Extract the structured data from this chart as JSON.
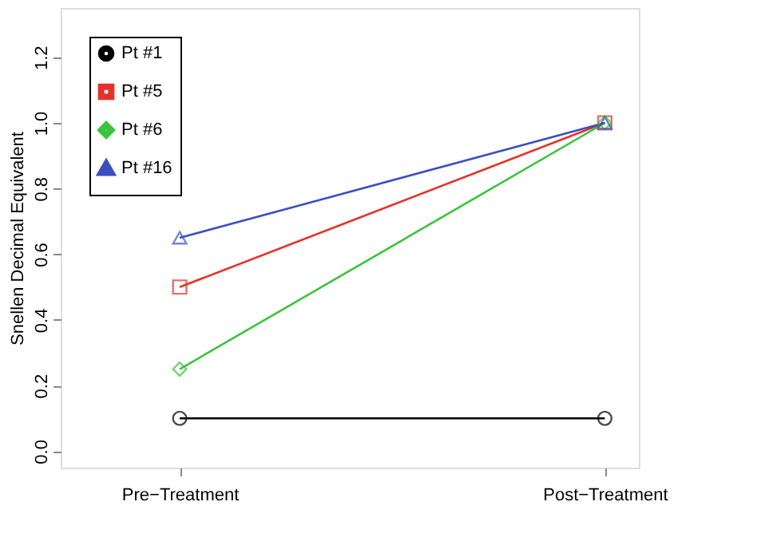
{
  "chart_data": {
    "type": "line",
    "ylabel": "Snellen Decimal Equivalent",
    "categories": [
      "Pre−Treatment",
      "Post−Treatment"
    ],
    "series": [
      {
        "name": "Pt #1",
        "color": "#000000",
        "values": [
          0.1,
          0.1
        ],
        "marker": "circle"
      },
      {
        "name": "Pt #5",
        "color": "#e8302a",
        "values": [
          0.5,
          1.0
        ],
        "marker": "square"
      },
      {
        "name": "Pt #6",
        "color": "#3cc23c",
        "values": [
          0.25,
          1.0
        ],
        "marker": "diamond"
      },
      {
        "name": "Pt #16",
        "color": "#3a4fc0",
        "values": [
          0.65,
          1.0
        ],
        "marker": "triangle"
      }
    ],
    "ylim": [
      -0.05,
      1.35
    ],
    "yticks": [
      {
        "value": 0,
        "label": "0.0"
      },
      0.2,
      0.4,
      0.6,
      0.8,
      {
        "value": 1,
        "label": "1.0"
      },
      1.2
    ],
    "grid": false,
    "legend": "top left",
    "line_style": "solid"
  }
}
